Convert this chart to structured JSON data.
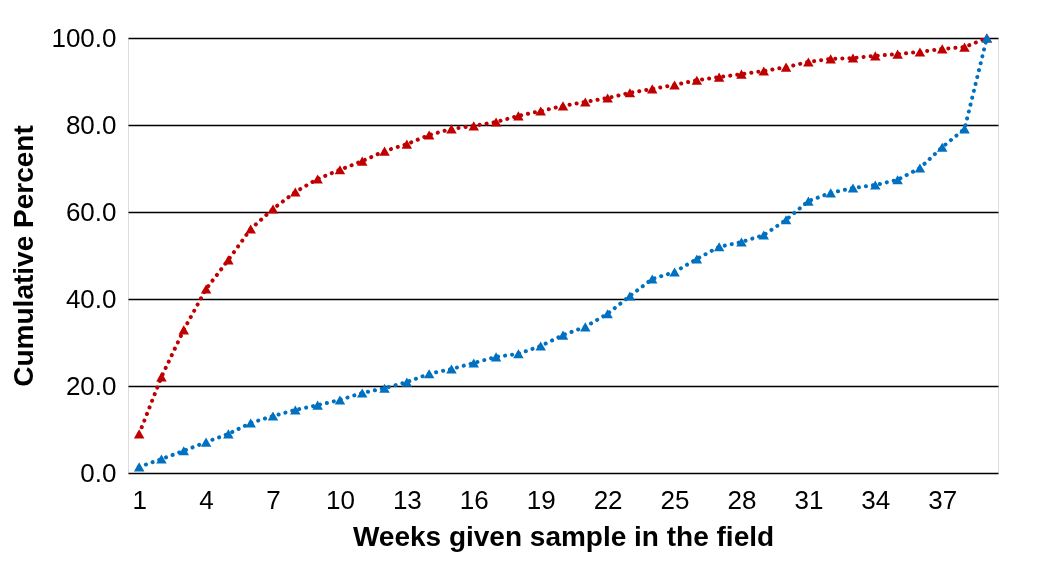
{
  "chart_data": {
    "type": "line",
    "xlabel": "Weeks given sample in the field",
    "ylabel": "Cumulative Percent",
    "categories": [
      "1",
      null,
      null,
      "4",
      null,
      null,
      "7",
      null,
      null,
      "10",
      null,
      null,
      "13",
      null,
      null,
      "16",
      null,
      null,
      "19",
      null,
      null,
      "22",
      null,
      null,
      "25",
      null,
      null,
      "28",
      null,
      null,
      "31",
      null,
      null,
      "34",
      null,
      null,
      "37",
      null,
      null
    ],
    "series": [
      {
        "color": "#c00000",
        "values": [
          9.0,
          22.1,
          32.9,
          42.3,
          49.0,
          56.1,
          60.7,
          64.6,
          67.6,
          69.7,
          71.7,
          74.0,
          75.6,
          77.7,
          79.1,
          79.8,
          80.7,
          82.1,
          83.2,
          84.4,
          85.3,
          86.2,
          87.4,
          88.3,
          89.2,
          90.3,
          91.0,
          91.7,
          92.4,
          93.3,
          94.5,
          95.2,
          95.4,
          95.9,
          96.3,
          96.8,
          97.5,
          97.9,
          100
        ]
      },
      {
        "color": "#0070c0",
        "values": [
          1.4,
          3.2,
          5.1,
          7.1,
          9.0,
          11.5,
          13.1,
          14.5,
          15.6,
          16.8,
          18.4,
          19.5,
          20.9,
          22.8,
          23.9,
          25.3,
          26.7,
          27.4,
          29.2,
          31.7,
          33.6,
          36.6,
          40.7,
          44.6,
          46.2,
          49.2,
          52.0,
          53.1,
          54.7,
          58.2,
          62.5,
          64.4,
          65.5,
          66.2,
          67.4,
          70.1,
          74.9,
          79.1,
          100
        ]
      }
    ],
    "ylim": [
      0,
      100
    ],
    "yticks": [
      {
        "value": 0,
        "label": "0.0"
      },
      {
        "value": 20,
        "label": "20.0"
      },
      {
        "value": 40,
        "label": "40.0"
      },
      {
        "value": 60,
        "label": "60.0"
      },
      {
        "value": 80,
        "label": "80.0"
      },
      {
        "value": 100,
        "label": "100.0"
      }
    ],
    "grid": "y",
    "marker": "triangle",
    "line_style": "dotted"
  }
}
